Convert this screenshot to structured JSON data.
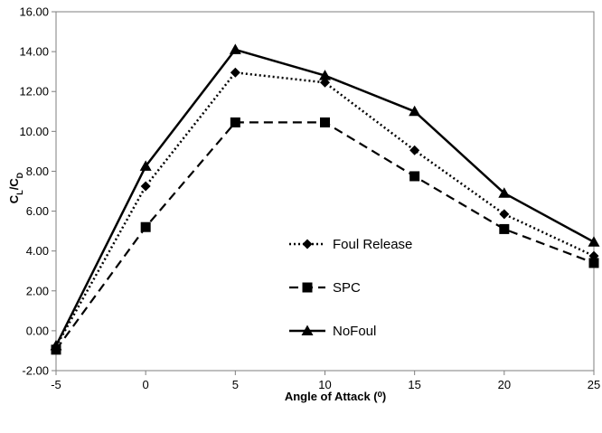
{
  "chart_data": {
    "type": "line",
    "title": "",
    "xlabel": "Angle of Attack (⁰)",
    "ylabel_main": "C",
    "ylabel_sub1": "L",
    "ylabel_sep": "/C",
    "ylabel_sub2": "D",
    "x": [
      -5,
      0,
      5,
      10,
      15,
      20,
      25
    ],
    "x_ticks": [
      "-5",
      "0",
      "5",
      "10",
      "15",
      "20",
      "25"
    ],
    "xlim": [
      -5,
      25
    ],
    "ylim": [
      -2,
      16
    ],
    "y_ticks": [
      "-2.00",
      "0.00",
      "2.00",
      "4.00",
      "6.00",
      "8.00",
      "10.00",
      "12.00",
      "14.00",
      "16.00"
    ],
    "grid": false,
    "legend_position": "center-right",
    "series": [
      {
        "name": "Foul Release",
        "marker": "diamond",
        "line_style": "dotted",
        "color": "#000000",
        "values": [
          -0.8,
          7.25,
          12.95,
          12.45,
          9.05,
          5.85,
          3.75
        ]
      },
      {
        "name": "SPC",
        "marker": "square",
        "line_style": "dashed",
        "color": "#000000",
        "values": [
          -0.95,
          5.2,
          10.45,
          10.45,
          7.75,
          5.1,
          3.4
        ]
      },
      {
        "name": "NoFoul",
        "marker": "triangle",
        "line_style": "solid",
        "color": "#000000",
        "values": [
          -0.75,
          8.25,
          14.1,
          12.8,
          11.0,
          6.9,
          4.45
        ]
      }
    ]
  }
}
